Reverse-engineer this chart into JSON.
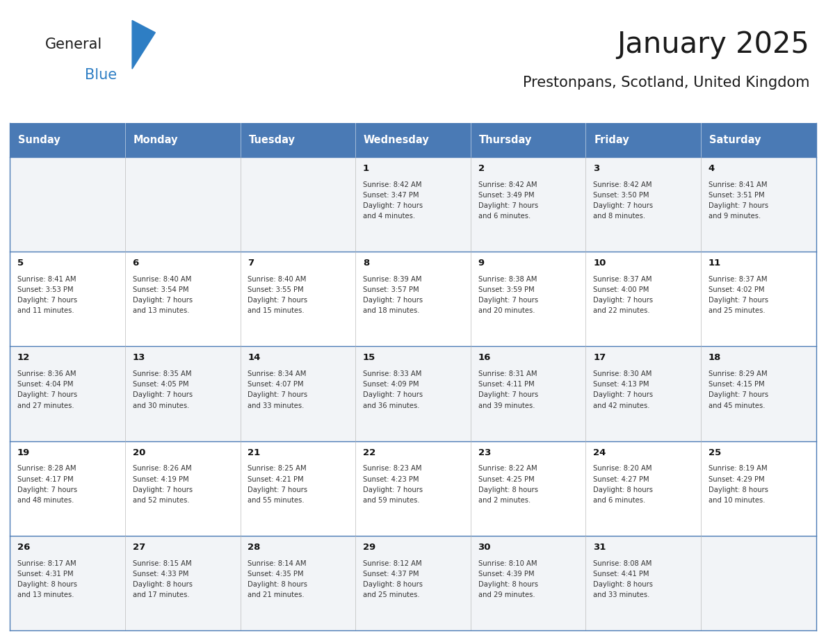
{
  "title": "January 2025",
  "subtitle": "Prestonpans, Scotland, United Kingdom",
  "header_color": "#4a7ab5",
  "header_text_color": "#ffffff",
  "cell_bg_row0": "#f2f4f7",
  "cell_bg_row1": "#ffffff",
  "border_color": "#4a7ab5",
  "text_color": "#333333",
  "day_number_color": "#1a1a1a",
  "days_of_week": [
    "Sunday",
    "Monday",
    "Tuesday",
    "Wednesday",
    "Thursday",
    "Friday",
    "Saturday"
  ],
  "weeks": [
    [
      {
        "day": "",
        "sunrise": "",
        "sunset": "",
        "daylight": ""
      },
      {
        "day": "",
        "sunrise": "",
        "sunset": "",
        "daylight": ""
      },
      {
        "day": "",
        "sunrise": "",
        "sunset": "",
        "daylight": ""
      },
      {
        "day": "1",
        "sunrise": "8:42 AM",
        "sunset": "3:47 PM",
        "daylight": "7 hours and 4 minutes."
      },
      {
        "day": "2",
        "sunrise": "8:42 AM",
        "sunset": "3:49 PM",
        "daylight": "7 hours and 6 minutes."
      },
      {
        "day": "3",
        "sunrise": "8:42 AM",
        "sunset": "3:50 PM",
        "daylight": "7 hours and 8 minutes."
      },
      {
        "day": "4",
        "sunrise": "8:41 AM",
        "sunset": "3:51 PM",
        "daylight": "7 hours and 9 minutes."
      }
    ],
    [
      {
        "day": "5",
        "sunrise": "8:41 AM",
        "sunset": "3:53 PM",
        "daylight": "7 hours and 11 minutes."
      },
      {
        "day": "6",
        "sunrise": "8:40 AM",
        "sunset": "3:54 PM",
        "daylight": "7 hours and 13 minutes."
      },
      {
        "day": "7",
        "sunrise": "8:40 AM",
        "sunset": "3:55 PM",
        "daylight": "7 hours and 15 minutes."
      },
      {
        "day": "8",
        "sunrise": "8:39 AM",
        "sunset": "3:57 PM",
        "daylight": "7 hours and 18 minutes."
      },
      {
        "day": "9",
        "sunrise": "8:38 AM",
        "sunset": "3:59 PM",
        "daylight": "7 hours and 20 minutes."
      },
      {
        "day": "10",
        "sunrise": "8:37 AM",
        "sunset": "4:00 PM",
        "daylight": "7 hours and 22 minutes."
      },
      {
        "day": "11",
        "sunrise": "8:37 AM",
        "sunset": "4:02 PM",
        "daylight": "7 hours and 25 minutes."
      }
    ],
    [
      {
        "day": "12",
        "sunrise": "8:36 AM",
        "sunset": "4:04 PM",
        "daylight": "7 hours and 27 minutes."
      },
      {
        "day": "13",
        "sunrise": "8:35 AM",
        "sunset": "4:05 PM",
        "daylight": "7 hours and 30 minutes."
      },
      {
        "day": "14",
        "sunrise": "8:34 AM",
        "sunset": "4:07 PM",
        "daylight": "7 hours and 33 minutes."
      },
      {
        "day": "15",
        "sunrise": "8:33 AM",
        "sunset": "4:09 PM",
        "daylight": "7 hours and 36 minutes."
      },
      {
        "day": "16",
        "sunrise": "8:31 AM",
        "sunset": "4:11 PM",
        "daylight": "7 hours and 39 minutes."
      },
      {
        "day": "17",
        "sunrise": "8:30 AM",
        "sunset": "4:13 PM",
        "daylight": "7 hours and 42 minutes."
      },
      {
        "day": "18",
        "sunrise": "8:29 AM",
        "sunset": "4:15 PM",
        "daylight": "7 hours and 45 minutes."
      }
    ],
    [
      {
        "day": "19",
        "sunrise": "8:28 AM",
        "sunset": "4:17 PM",
        "daylight": "7 hours and 48 minutes."
      },
      {
        "day": "20",
        "sunrise": "8:26 AM",
        "sunset": "4:19 PM",
        "daylight": "7 hours and 52 minutes."
      },
      {
        "day": "21",
        "sunrise": "8:25 AM",
        "sunset": "4:21 PM",
        "daylight": "7 hours and 55 minutes."
      },
      {
        "day": "22",
        "sunrise": "8:23 AM",
        "sunset": "4:23 PM",
        "daylight": "7 hours and 59 minutes."
      },
      {
        "day": "23",
        "sunrise": "8:22 AM",
        "sunset": "4:25 PM",
        "daylight": "8 hours and 2 minutes."
      },
      {
        "day": "24",
        "sunrise": "8:20 AM",
        "sunset": "4:27 PM",
        "daylight": "8 hours and 6 minutes."
      },
      {
        "day": "25",
        "sunrise": "8:19 AM",
        "sunset": "4:29 PM",
        "daylight": "8 hours and 10 minutes."
      }
    ],
    [
      {
        "day": "26",
        "sunrise": "8:17 AM",
        "sunset": "4:31 PM",
        "daylight": "8 hours and 13 minutes."
      },
      {
        "day": "27",
        "sunrise": "8:15 AM",
        "sunset": "4:33 PM",
        "daylight": "8 hours and 17 minutes."
      },
      {
        "day": "28",
        "sunrise": "8:14 AM",
        "sunset": "4:35 PM",
        "daylight": "8 hours and 21 minutes."
      },
      {
        "day": "29",
        "sunrise": "8:12 AM",
        "sunset": "4:37 PM",
        "daylight": "8 hours and 25 minutes."
      },
      {
        "day": "30",
        "sunrise": "8:10 AM",
        "sunset": "4:39 PM",
        "daylight": "8 hours and 29 minutes."
      },
      {
        "day": "31",
        "sunrise": "8:08 AM",
        "sunset": "4:41 PM",
        "daylight": "8 hours and 33 minutes."
      },
      {
        "day": "",
        "sunrise": "",
        "sunset": "",
        "daylight": ""
      }
    ]
  ],
  "logo_text1": "General",
  "logo_text2": "Blue",
  "logo_color1": "#1a1a1a",
  "logo_color2": "#2e7ec4",
  "logo_triangle_color": "#2e7ec4",
  "fig_width": 11.88,
  "fig_height": 9.18,
  "dpi": 100
}
